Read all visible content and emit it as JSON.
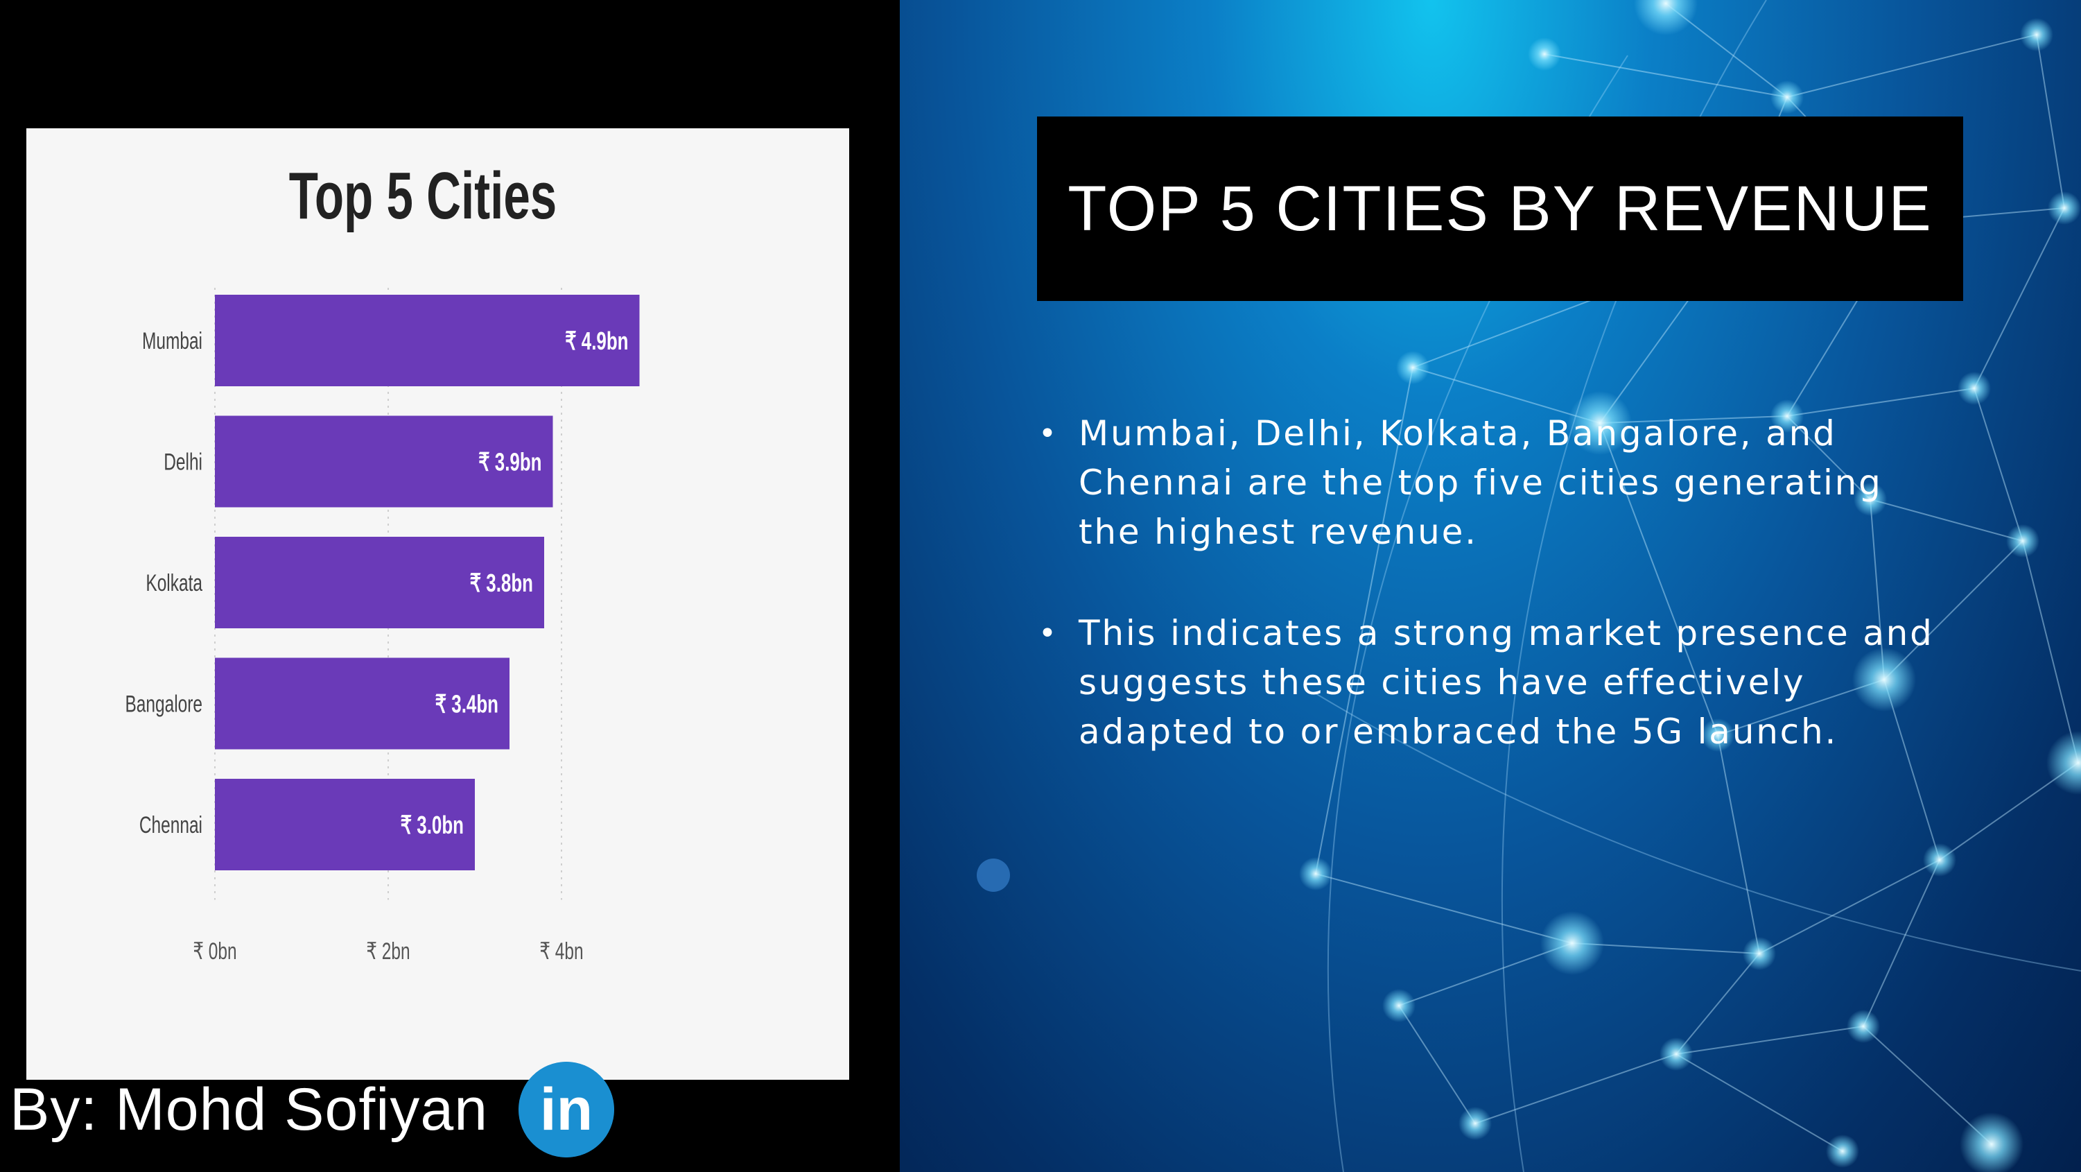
{
  "chart_data": {
    "type": "bar",
    "orientation": "horizontal",
    "title": "Top 5 Cities",
    "categories": [
      "Mumbai",
      "Delhi",
      "Kolkata",
      "Bangalore",
      "Chennai"
    ],
    "values": [
      4.9,
      3.9,
      3.8,
      3.4,
      3.0
    ],
    "value_labels": [
      "₹ 4.9bn",
      "₹ 3.9bn",
      "₹ 3.8bn",
      "₹ 3.4bn",
      "₹ 3.0bn"
    ],
    "x_ticks": [
      0,
      2,
      4
    ],
    "x_tick_labels": [
      "₹ 0bn",
      "₹ 2bn",
      "₹ 4bn"
    ],
    "xlim": [
      0,
      6.5
    ],
    "xlabel": "",
    "ylabel": "",
    "grid": true,
    "legend": "none",
    "bar_color": "#6a3ab8"
  },
  "slide": {
    "title": "TOP 5 CITIES BY REVENUE",
    "bullets": [
      "Mumbai, Delhi, Kolkata, Bangalore, and Chennai are the top five cities generating the highest revenue.",
      "This indicates a strong market presence and suggests these cities have effectively adapted to or embraced the 5G launch."
    ],
    "bullet_symbol": "•"
  },
  "author": {
    "text": "By: Mohd Sofiyan",
    "logo_icon": "linkedin-icon",
    "logo_text": "in",
    "logo_color": "#1a8fd1"
  }
}
